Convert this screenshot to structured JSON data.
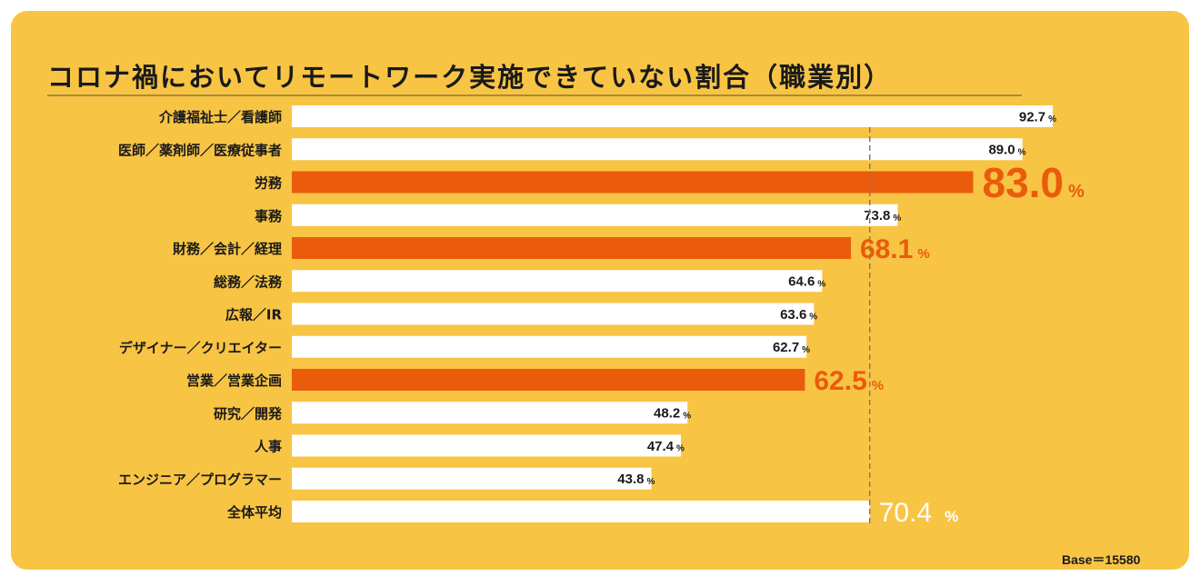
{
  "chart_data": {
    "type": "bar",
    "orientation": "horizontal",
    "title": "コロナ禍においてリモートワーク実施できていない割合（職業別）",
    "categories": [
      "介護福祉士／看護師",
      "医師／薬剤師／医療従事者",
      "労務",
      "事務",
      "財務／会計／経理",
      "総務／法務",
      "広報／IR",
      "デザイナー／クリエイター",
      "営業／営業企画",
      "研究／開発",
      "人事",
      "エンジニア／プログラマー",
      "全体平均"
    ],
    "values": [
      92.7,
      89.0,
      83.0,
      73.8,
      68.1,
      64.6,
      63.6,
      62.7,
      62.5,
      48.2,
      47.4,
      43.8,
      70.4
    ],
    "highlighted": [
      false,
      false,
      true,
      false,
      true,
      false,
      false,
      false,
      true,
      false,
      false,
      false,
      false
    ],
    "value_labels": [
      "92.7",
      "89.0",
      "83.0",
      "73.8",
      "68.1",
      "64.6",
      "63.6",
      "62.7",
      "62.5",
      "48.2",
      "47.4",
      "43.8",
      "70.4"
    ],
    "unit": "%",
    "reference_line": 70.4,
    "xlim": [
      0,
      100
    ],
    "xlabel": "",
    "ylabel": "",
    "grid": false,
    "note": "Base＝15580"
  },
  "colors": {
    "background": "#F8C444",
    "bar": "#FFFFFF",
    "highlight": "#EA5B0C",
    "text": "#1a1a1a"
  }
}
